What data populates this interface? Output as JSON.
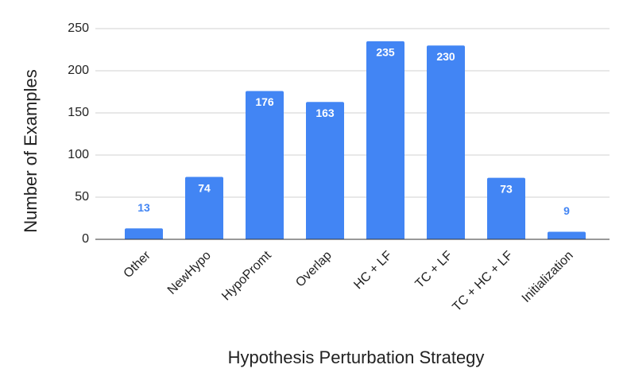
{
  "chart_data": {
    "type": "bar",
    "x_label": "Hypothesis Perturbation Strategy",
    "y_label": "Number of Examples",
    "categories": [
      "Other",
      "NewHypo",
      "HypoPromt",
      "Overlap",
      "HC + LF",
      "TC + LF",
      "TC + HC + LF",
      "Initialization"
    ],
    "values": [
      13,
      74,
      176,
      163,
      235,
      230,
      73,
      9
    ],
    "color": "#4285f4",
    "ylim": [
      0,
      250
    ],
    "yticks": [
      0,
      50,
      100,
      150,
      200,
      250
    ],
    "grid": true
  }
}
